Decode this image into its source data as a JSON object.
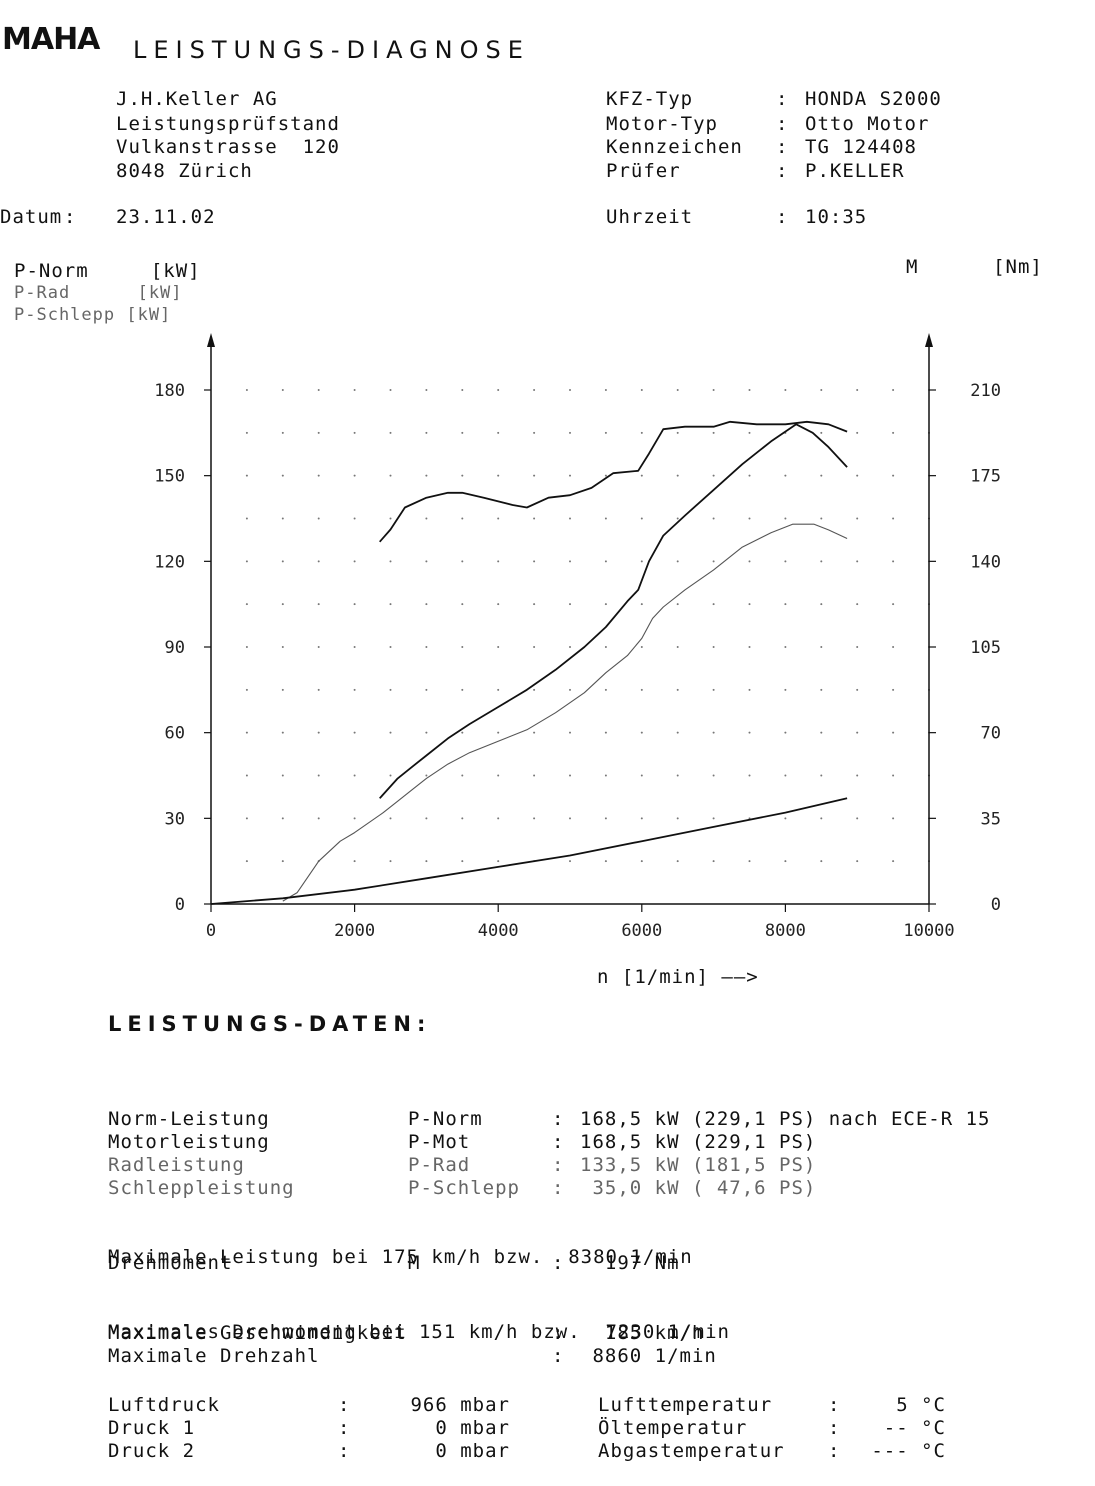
{
  "header": {
    "logo": "MAHA",
    "title": "LEISTUNGS-DIAGNOSE"
  },
  "company": {
    "line1": "J.H.Keller AG",
    "line2": "Leistungsprüfstand",
    "line3": "Vulkanstrasse  120",
    "line4": "8048 Zürich"
  },
  "vehicle": {
    "rows": [
      {
        "label": "KFZ-Typ",
        "value": "HONDA S2000"
      },
      {
        "label": "Motor-Typ",
        "value": "Otto Motor"
      },
      {
        "label": "Kennzeichen",
        "value": "TG 124408"
      },
      {
        "label": "Prüfer",
        "value": "P.KELLER"
      }
    ]
  },
  "datum": {
    "label": "Datum",
    "value": "23.11.02"
  },
  "uhrzeit": {
    "label": "Uhrzeit",
    "value": "10:35"
  },
  "legend": {
    "left1": "P-Norm     [kW]",
    "left2": "P-Rad      [kW]",
    "left3": "P-Schlepp [kW]",
    "right": "M      [Nm]"
  },
  "chart_data": {
    "type": "line",
    "xlabel": "n [1/min]",
    "xlim": [
      0,
      10000
    ],
    "ylim_left": [
      0,
      180
    ],
    "ylim_right": [
      0,
      210
    ],
    "x_ticks": [
      "0",
      "2000",
      "4000",
      "6000",
      "8000",
      "10000"
    ],
    "y_ticks_left": [
      "0",
      "30",
      "60",
      "90",
      "120",
      "150",
      "180"
    ],
    "y_ticks_right": [
      "0",
      "35",
      "70",
      "105",
      "140",
      "175",
      "210"
    ],
    "grid": "dotted",
    "series": [
      {
        "name": "P-Norm",
        "axis": "left",
        "color": "#111111",
        "points": [
          [
            2350,
            37
          ],
          [
            2600,
            44
          ],
          [
            2800,
            48
          ],
          [
            3000,
            52
          ],
          [
            3300,
            58
          ],
          [
            3600,
            63
          ],
          [
            4000,
            69
          ],
          [
            4400,
            75
          ],
          [
            4800,
            82
          ],
          [
            5200,
            90
          ],
          [
            5500,
            97
          ],
          [
            5800,
            106
          ],
          [
            5950,
            110
          ],
          [
            6100,
            120
          ],
          [
            6300,
            129
          ],
          [
            6600,
            136
          ],
          [
            7000,
            145
          ],
          [
            7400,
            154
          ],
          [
            7800,
            162
          ],
          [
            8150,
            168
          ],
          [
            8380,
            165
          ],
          [
            8600,
            160
          ],
          [
            8860,
            153
          ]
        ]
      },
      {
        "name": "P-Rad",
        "axis": "left",
        "color": "#555555",
        "points": [
          [
            1000,
            1
          ],
          [
            1200,
            4
          ],
          [
            1500,
            15
          ],
          [
            1800,
            22
          ],
          [
            2000,
            25
          ],
          [
            2400,
            32
          ],
          [
            2600,
            36
          ],
          [
            2800,
            40
          ],
          [
            3000,
            44
          ],
          [
            3300,
            49
          ],
          [
            3600,
            53
          ],
          [
            4000,
            57
          ],
          [
            4400,
            61
          ],
          [
            4800,
            67
          ],
          [
            5200,
            74
          ],
          [
            5500,
            81
          ],
          [
            5800,
            87
          ],
          [
            6000,
            93
          ],
          [
            6150,
            100
          ],
          [
            6300,
            104
          ],
          [
            6600,
            110
          ],
          [
            7000,
            117
          ],
          [
            7400,
            125
          ],
          [
            7800,
            130
          ],
          [
            8100,
            133
          ],
          [
            8400,
            133
          ],
          [
            8600,
            131
          ],
          [
            8860,
            128
          ]
        ]
      },
      {
        "name": "P-Schlepp",
        "axis": "left",
        "color": "#111111",
        "points": [
          [
            0,
            0
          ],
          [
            1000,
            2
          ],
          [
            2000,
            5
          ],
          [
            3000,
            9
          ],
          [
            4000,
            13
          ],
          [
            5000,
            17
          ],
          [
            6000,
            22
          ],
          [
            7000,
            27
          ],
          [
            8000,
            32
          ],
          [
            8860,
            37
          ]
        ]
      },
      {
        "name": "M",
        "axis": "right",
        "color": "#111111",
        "points": [
          [
            2350,
            148
          ],
          [
            2500,
            153
          ],
          [
            2700,
            162
          ],
          [
            3000,
            166
          ],
          [
            3300,
            168
          ],
          [
            3500,
            168
          ],
          [
            3800,
            166
          ],
          [
            4200,
            163
          ],
          [
            4400,
            162
          ],
          [
            4700,
            166
          ],
          [
            5000,
            167
          ],
          [
            5300,
            170
          ],
          [
            5600,
            176
          ],
          [
            5950,
            177
          ],
          [
            6100,
            184
          ],
          [
            6300,
            194
          ],
          [
            6600,
            195
          ],
          [
            7000,
            195
          ],
          [
            7230,
            197
          ],
          [
            7600,
            196
          ],
          [
            8000,
            196
          ],
          [
            8300,
            197
          ],
          [
            8600,
            196
          ],
          [
            8860,
            193
          ]
        ]
      }
    ]
  },
  "section_title": "LEISTUNGS-DATEN:",
  "leistung_rows": [
    {
      "name": "Norm-Leistung",
      "sym": "P-Norm",
      "sep": ":",
      "val": "168,5 kW (229,1 PS)",
      "extra": " nach ECE-R 15",
      "grey": false
    },
    {
      "name": "Motorleistung",
      "sym": "P-Mot",
      "sep": ":",
      "val": "168,5 kW (229,1 PS)",
      "extra": "",
      "grey": false
    },
    {
      "name": "Radleistung",
      "sym": "P-Rad",
      "sep": ":",
      "val": "133,5 kW (181,5 PS)",
      "extra": "",
      "grey": true
    },
    {
      "name": "Schleppleistung",
      "sym": "P-Schlepp",
      "sep": ":",
      "val": " 35,0 kW ( 47,6 PS)",
      "extra": "",
      "grey": true
    }
  ],
  "max_leistung": "Maximale Leistung bei 175 km/h bzw.  8380 1/min",
  "drehmoment": {
    "name": "Drehmoment",
    "sym": "M",
    "sep": ":",
    "val": "  197 Nm"
  },
  "max_drehmoment": "Maximales Drehmoment bei 151 km/h bzw.  7230 1/min",
  "max_geschw": {
    "name": "Maximale Geschwindigkeit",
    "sep": ":",
    "val": "  185 km/h"
  },
  "max_drehzahl": {
    "name": "Maximale Drehzahl",
    "sep": ":",
    "val": " 8860 1/min"
  },
  "conditions": [
    {
      "l_name": "Luftdruck",
      "l_val": "966 mbar",
      "r_name": "Lufttemperatur",
      "r_val": "5 °C"
    },
    {
      "l_name": "Druck 1",
      "l_val": "0 mbar",
      "r_name": "Öltemperatur",
      "r_val": "-- °C"
    },
    {
      "l_name": "Druck 2",
      "l_val": "0 mbar",
      "r_name": "Abgastemperatur",
      "r_val": "--- °C"
    }
  ]
}
